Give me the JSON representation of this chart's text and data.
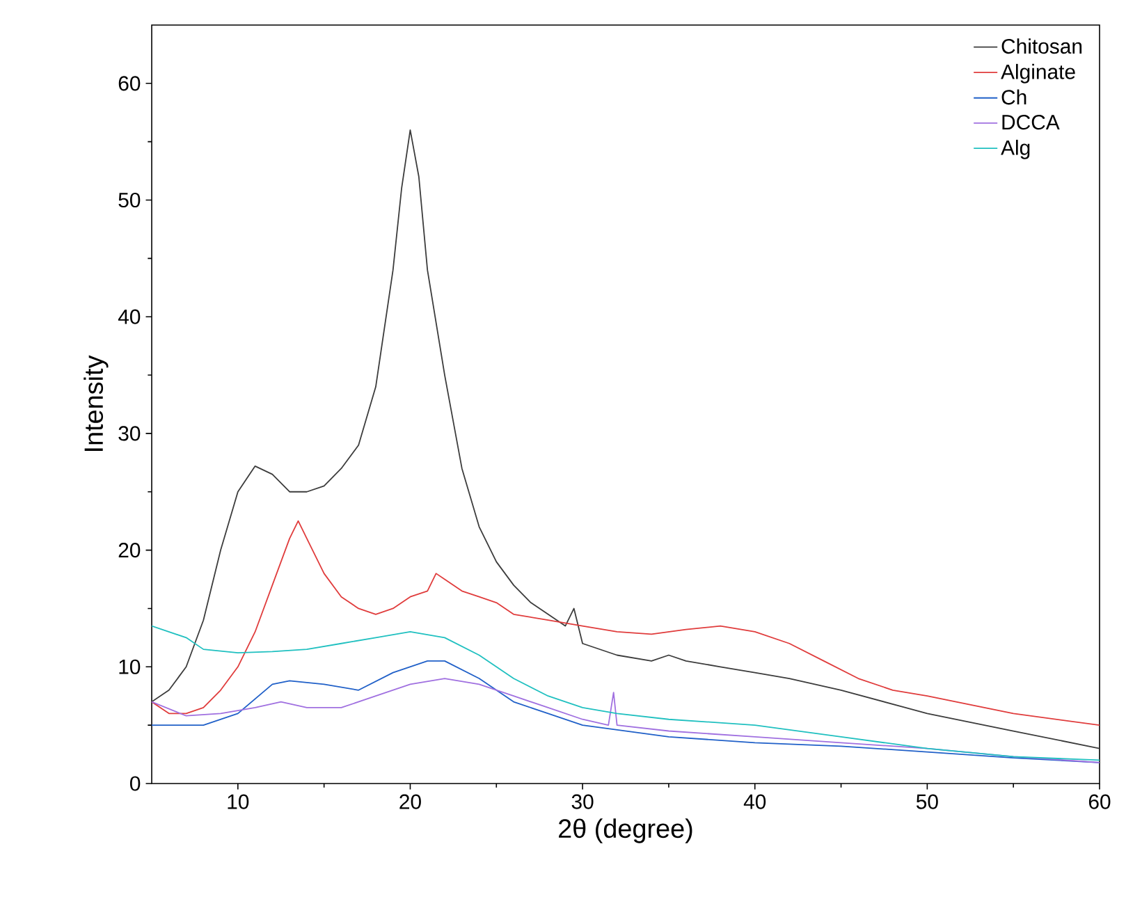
{
  "chart_data": {
    "type": "line",
    "xlabel": "2θ (degree)",
    "ylabel": "Intensity",
    "xlim": [
      5,
      60
    ],
    "ylim": [
      0,
      65
    ],
    "xticks": [
      10,
      20,
      30,
      40,
      50,
      60
    ],
    "yticks": [
      0,
      10,
      20,
      30,
      40,
      50,
      60
    ],
    "legend": "top right",
    "grid": false,
    "series": [
      {
        "name": "Chitosan",
        "color": "#3c3c3c",
        "x": [
          5,
          6,
          7,
          8,
          9,
          10,
          11,
          12,
          13,
          14,
          15,
          16,
          17,
          18,
          19,
          19.5,
          20,
          20.5,
          21,
          22,
          23,
          24,
          25,
          26,
          27,
          28,
          29,
          29.5,
          30,
          32,
          34,
          35,
          36,
          38,
          40,
          42,
          45,
          50,
          55,
          60
        ],
        "values": [
          7,
          8,
          10,
          14,
          20,
          25,
          27.2,
          26.5,
          25,
          25,
          25.5,
          27,
          29,
          34,
          44,
          51,
          56,
          52,
          44,
          35,
          27,
          22,
          19,
          17,
          15.5,
          14.5,
          13.5,
          15,
          12,
          11,
          10.5,
          11,
          10.5,
          10,
          9.5,
          9,
          8,
          6,
          4.5,
          3
        ]
      },
      {
        "name": "Alginate",
        "color": "#e03c3c",
        "x": [
          5,
          6,
          7,
          8,
          9,
          10,
          11,
          12,
          13,
          13.5,
          14,
          15,
          16,
          17,
          18,
          19,
          20,
          21,
          21.5,
          22,
          23,
          24,
          25,
          26,
          28,
          30,
          32,
          34,
          36,
          38,
          40,
          42,
          44,
          46,
          48,
          50,
          55,
          60
        ],
        "values": [
          7,
          6,
          6,
          6.5,
          8,
          10,
          13,
          17,
          21,
          22.5,
          21,
          18,
          16,
          15,
          14.5,
          15,
          16,
          16.5,
          18,
          17.5,
          16.5,
          16,
          15.5,
          14.5,
          14,
          13.5,
          13,
          12.8,
          13.2,
          13.5,
          13,
          12,
          10.5,
          9,
          8,
          7.5,
          6,
          5
        ]
      },
      {
        "name": "Ch",
        "color": "#2060c8",
        "x": [
          5,
          8,
          10,
          12,
          13,
          15,
          17,
          19,
          21,
          22,
          24,
          26,
          28,
          30,
          35,
          40,
          45,
          50,
          55,
          60
        ],
        "values": [
          5,
          5,
          6,
          8.5,
          8.8,
          8.5,
          8,
          9.5,
          10.5,
          10.5,
          9,
          7,
          6,
          5,
          4,
          3.5,
          3.2,
          2.7,
          2.2,
          1.8
        ]
      },
      {
        "name": "DCCA",
        "color": "#a070e0",
        "x": [
          5,
          7,
          9,
          11,
          12.5,
          14,
          16,
          18,
          20,
          22,
          24,
          26,
          28,
          30,
          31.5,
          31.8,
          32,
          35,
          40,
          45,
          50,
          55,
          60
        ],
        "values": [
          7,
          5.8,
          6,
          6.5,
          7,
          6.5,
          6.5,
          7.5,
          8.5,
          9,
          8.5,
          7.5,
          6.5,
          5.5,
          5,
          7.8,
          5,
          4.5,
          4,
          3.5,
          3,
          2.3,
          1.8
        ]
      },
      {
        "name": "Alg",
        "color": "#20c0c0",
        "x": [
          5,
          7,
          8,
          10,
          12,
          14,
          16,
          18,
          20,
          22,
          24,
          26,
          28,
          30,
          32,
          35,
          40,
          45,
          50,
          55,
          60
        ],
        "values": [
          13.5,
          12.5,
          11.5,
          11.2,
          11.3,
          11.5,
          12,
          12.5,
          13,
          12.5,
          11,
          9,
          7.5,
          6.5,
          6,
          5.5,
          5,
          4,
          3,
          2.3,
          2
        ]
      }
    ]
  }
}
